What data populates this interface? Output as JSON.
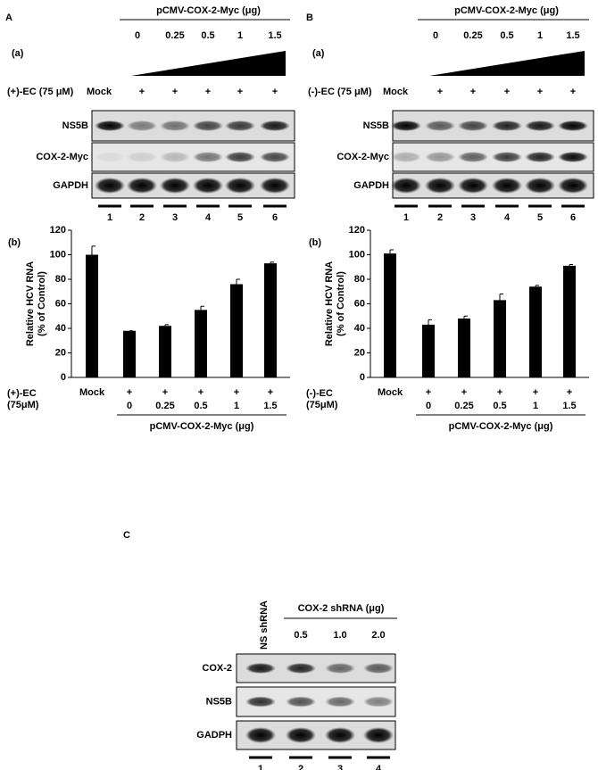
{
  "panel_a": {
    "letter": "A",
    "sub_a": "(a)",
    "plasmid": "pCMV-COX-2-Myc (μg)",
    "doses": [
      "0",
      "0.25",
      "0.5",
      "1",
      "1.5"
    ],
    "treatment": "(+)-EC (75 μM)",
    "lane_treatments": [
      "Mock",
      "+",
      "+",
      "+",
      "+",
      "+"
    ],
    "blots": [
      "NS5B",
      "COX-2-Myc",
      "GAPDH"
    ],
    "lanes": [
      "1",
      "2",
      "3",
      "4",
      "5",
      "6"
    ],
    "sub_b": "(b)"
  },
  "panel_b": {
    "letter": "B",
    "sub_a": "(a)",
    "plasmid": "pCMV-COX-2-Myc (μg)",
    "doses": [
      "0",
      "0.25",
      "0.5",
      "1",
      "1.5"
    ],
    "treatment": "(-)-EC (75 μM)",
    "lane_treatments": [
      "Mock",
      "+",
      "+",
      "+",
      "+",
      "+"
    ],
    "blots": [
      "NS5B",
      "COX-2-Myc",
      "GAPDH"
    ],
    "lanes": [
      "1",
      "2",
      "3",
      "4",
      "5",
      "6"
    ],
    "sub_b": "(b)"
  },
  "panel_c": {
    "letter": "C",
    "control": "NS shRNA",
    "treatment": "COX-2 shRNA  (μg)",
    "doses": [
      "0.5",
      "1.0",
      "2.0"
    ],
    "blots": [
      "COX-2",
      "NS5B",
      "GADPH"
    ],
    "lanes": [
      "1",
      "2",
      "3",
      "4"
    ]
  },
  "chart_data": [
    {
      "type": "bar",
      "y_label": [
        "Relative HCV RNA",
        "(% of Control)"
      ],
      "x_label": [
        "(+)-EC",
        "(75μM)"
      ],
      "categories": [
        "Mock",
        "+",
        "+",
        "+",
        "+",
        "+"
      ],
      "sub_categories": [
        null,
        "0",
        "0.25",
        "0.5",
        "1",
        "1.5"
      ],
      "group_label": "pCMV-COX-2-Myc (μg)",
      "values": [
        100,
        38,
        42,
        55,
        76,
        93
      ],
      "errors": [
        7,
        0,
        1,
        3,
        4,
        1
      ],
      "color": "#000000",
      "ylim": [
        0,
        120
      ],
      "yticks": [
        0,
        20,
        40,
        60,
        80,
        100,
        120
      ]
    },
    {
      "type": "bar",
      "y_label": [
        "Relative HCV RNA",
        "(% of Control)"
      ],
      "x_label": [
        "(-)-EC",
        "(75μM)"
      ],
      "categories": [
        "Mock",
        "+",
        "+",
        "+",
        "+",
        "+"
      ],
      "sub_categories": [
        null,
        "0",
        "0.25",
        "0.5",
        "1",
        "1.5"
      ],
      "group_label": "pCMV-COX-2-Myc (μg)",
      "values": [
        101,
        43,
        48,
        63,
        74,
        91
      ],
      "errors": [
        3,
        4,
        2,
        5,
        1,
        1
      ],
      "color": "#000000",
      "ylim": [
        0,
        120
      ],
      "yticks": [
        0,
        20,
        40,
        60,
        80,
        100,
        120
      ]
    }
  ]
}
